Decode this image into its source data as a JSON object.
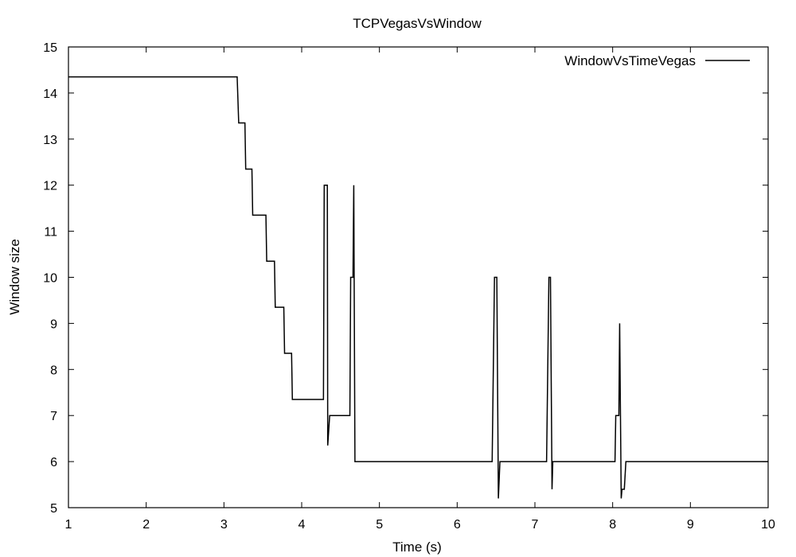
{
  "chart_data": {
    "type": "line",
    "title": "TCPVegasVsWindow",
    "xlabel": "Time (s)",
    "ylabel": "Window size",
    "xlim": [
      1,
      10
    ],
    "ylim": [
      5,
      15
    ],
    "xticks": [
      "1",
      "2",
      "3",
      "4",
      "5",
      "6",
      "7",
      "8",
      "9",
      "10"
    ],
    "yticks": [
      "5",
      "6",
      "7",
      "8",
      "9",
      "10",
      "11",
      "12",
      "13",
      "14",
      "15"
    ],
    "grid": false,
    "legend_position": "top-right",
    "series": [
      {
        "name": "WindowVsTimeVegas",
        "color": "#000000",
        "x": [
          1.0,
          3.17,
          3.19,
          3.27,
          3.28,
          3.36,
          3.37,
          3.54,
          3.55,
          3.65,
          3.66,
          3.77,
          3.78,
          3.87,
          3.88,
          4.28,
          4.29,
          4.31,
          4.33,
          4.335,
          4.36,
          4.62,
          4.63,
          4.66,
          4.67,
          4.685,
          4.7,
          6.45,
          6.48,
          6.51,
          6.53,
          6.55,
          7.15,
          7.18,
          7.2,
          7.22,
          7.23,
          8.03,
          8.04,
          8.08,
          8.09,
          8.11,
          8.12,
          8.15,
          8.17,
          8.18,
          10.0
        ],
        "y": [
          14.35,
          14.35,
          13.35,
          13.35,
          12.35,
          12.35,
          11.35,
          11.35,
          10.35,
          10.35,
          9.35,
          9.35,
          8.35,
          8.35,
          7.35,
          7.35,
          12.0,
          12.0,
          12.0,
          6.35,
          7.0,
          7.0,
          10.0,
          10.0,
          12.0,
          6.0,
          6.0,
          6.0,
          10.0,
          10.0,
          5.2,
          6.0,
          6.0,
          10.0,
          10.0,
          5.4,
          6.0,
          6.0,
          7.0,
          7.0,
          9.0,
          5.2,
          5.4,
          5.4,
          6.0,
          6.0,
          6.0
        ]
      }
    ]
  }
}
